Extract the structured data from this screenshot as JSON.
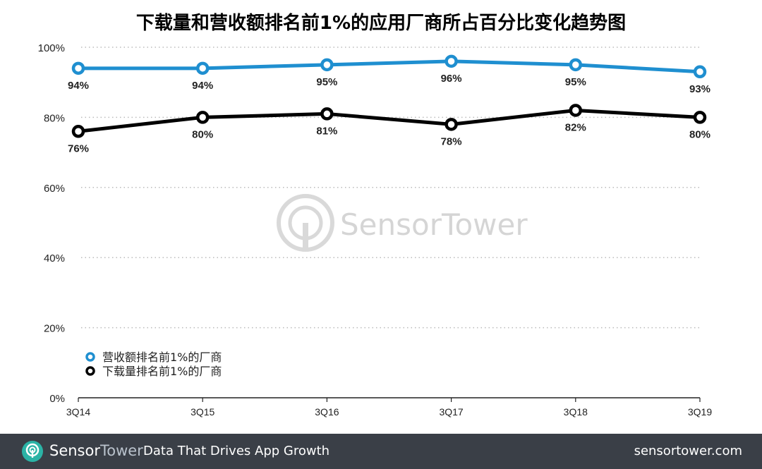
{
  "chart_data": {
    "type": "line",
    "title": "下载量和营收额排名前1%的应用厂商所占百分比变化趋势图",
    "categories": [
      "3Q14",
      "3Q15",
      "3Q16",
      "3Q17",
      "3Q18",
      "3Q19"
    ],
    "yticks": [
      "0%",
      "20%",
      "40%",
      "60%",
      "80%",
      "100%"
    ],
    "ylim": [
      0,
      100
    ],
    "grid": true,
    "legend_position": "bottom-left",
    "series": [
      {
        "name": "营收额排名前1%的厂商",
        "values": [
          94,
          94,
          95,
          96,
          95,
          93
        ],
        "labels": [
          "94%",
          "94%",
          "95%",
          "96%",
          "95%",
          "93%"
        ],
        "color": "#1f8fd0"
      },
      {
        "name": "下载量排名前1%的厂商",
        "values": [
          76,
          80,
          81,
          78,
          82,
          80
        ],
        "labels": [
          "76%",
          "80%",
          "81%",
          "78%",
          "82%",
          "80%"
        ],
        "color": "#000000"
      }
    ]
  },
  "watermark": {
    "text": "SensorTower"
  },
  "footer": {
    "brand_part1": "Sensor",
    "brand_part2": "Tower",
    "tagline": "Data That Drives App Growth",
    "url": "sensortower.com",
    "background": "#3a3f47"
  }
}
